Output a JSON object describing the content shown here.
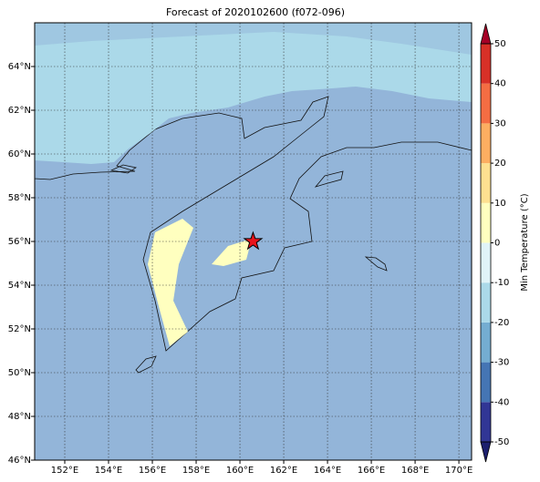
{
  "chart_data": {
    "type": "map",
    "title": "Forecast of 2020102600 (f072-096)",
    "xlim": [
      150.625,
      170.58
    ],
    "ylim": [
      46,
      66
    ],
    "xticks": [
      {
        "value": 152,
        "label": "152°E"
      },
      {
        "value": 154,
        "label": "154°E"
      },
      {
        "value": 156,
        "label": "156°E"
      },
      {
        "value": 158,
        "label": "158°E"
      },
      {
        "value": 160,
        "label": "160°E"
      },
      {
        "value": 162,
        "label": "162°E"
      },
      {
        "value": 164,
        "label": "164°E"
      },
      {
        "value": 166,
        "label": "166°E"
      },
      {
        "value": 168,
        "label": "168°E"
      },
      {
        "value": 170,
        "label": "170°E"
      }
    ],
    "yticks": [
      {
        "value": 46,
        "label": "46°N"
      },
      {
        "value": 48,
        "label": "48°N"
      },
      {
        "value": 50,
        "label": "50°N"
      },
      {
        "value": 52,
        "label": "52°N"
      },
      {
        "value": 54,
        "label": "54°N"
      },
      {
        "value": 56,
        "label": "56°N"
      },
      {
        "value": 58,
        "label": "58°N"
      },
      {
        "value": 60,
        "label": "60°N"
      },
      {
        "value": 62,
        "label": "62°N"
      },
      {
        "value": 64,
        "label": "64°N"
      }
    ],
    "grid": true,
    "marker": {
      "lon": 160.6,
      "lat": 56,
      "color": "#e8141c"
    },
    "colorbar": {
      "label": "Min Temperature (°C)",
      "levels": [
        -50,
        -40,
        -30,
        -20,
        -10,
        0,
        10,
        20,
        30,
        40,
        50
      ],
      "colors": [
        "#313695",
        "#4575b4",
        "#74add1",
        "#abd9e9",
        "#e0f3f8",
        "#ffffbf",
        "#fee090",
        "#fdae61",
        "#f46d43",
        "#d73027"
      ],
      "under_color": "#1c1f6e",
      "over_color": "#a50026",
      "ticks": [
        -50,
        -40,
        -30,
        -20,
        -10,
        0,
        10,
        20,
        30,
        40,
        50
      ]
    }
  }
}
